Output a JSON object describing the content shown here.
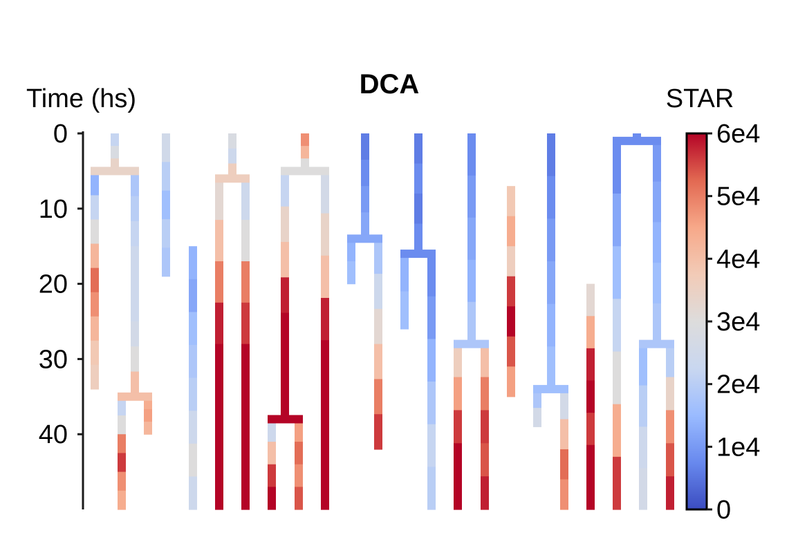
{
  "chart_data": {
    "type": "heatmap",
    "title": "DCA",
    "ylabel": "Time (hs)",
    "colorbar_label": "STAR",
    "y_ticks": [
      "0",
      "10",
      "20",
      "30",
      "40"
    ],
    "y_tick_values": [
      0,
      10,
      20,
      30,
      40
    ],
    "ylim": [
      0,
      50
    ],
    "colorbar_ticks": [
      "0",
      "1e4",
      "2e4",
      "3e4",
      "4e4",
      "5e4",
      "6e4"
    ],
    "colorbar_values": [
      0,
      10000,
      20000,
      30000,
      40000,
      50000,
      60000
    ],
    "colormap": "coolwarm",
    "colormap_stops": [
      "#3b4cc0",
      "#6889ee",
      "#9abbff",
      "#c9d7f0",
      "#dddcdc",
      "#f2cbb7",
      "#f7a889",
      "#e26952",
      "#b40426"
    ],
    "lineages": [
      {
        "id": "A",
        "branches": [
          {
            "t0": 0,
            "t1": 5,
            "vals": [
              22000,
              28000,
              34000
            ]
          },
          {
            "t0": 5,
            "t1": 34,
            "vals": [
              14000,
              22000,
              30000,
              42000,
              52000,
              48000,
              42000,
              38000,
              36000
            ]
          },
          {
            "t0": 5,
            "t1": 35,
            "vals": [
              18000,
              20000,
              22000,
              24000,
              24000,
              24000,
              26000,
              30000,
              40000
            ]
          },
          {
            "t0": 35,
            "t1": 40,
            "vals": [
              44000,
              46000,
              42000
            ]
          },
          {
            "t0": 35,
            "t1": 50,
            "vals": [
              22000,
              30000,
              50000,
              56000,
              48000,
              44000
            ]
          }
        ]
      },
      {
        "id": "B",
        "branches": [
          {
            "t0": 0,
            "t1": 19,
            "vals": [
              25000,
              20000,
              16000,
              20000,
              18000
            ]
          }
        ]
      },
      {
        "id": "C",
        "branches": [
          {
            "t0": 15,
            "t1": 50,
            "vals": [
              14000,
              12000,
              16000,
              18000,
              20000,
              24000,
              30000,
              24000
            ]
          }
        ]
      },
      {
        "id": "D",
        "branches": [
          {
            "t0": 0,
            "t1": 6,
            "vals": [
              28000,
              24000,
              36000
            ]
          },
          {
            "t0": 6,
            "t1": 50,
            "vals": [
              32000,
              40000,
              50000,
              58000,
              60000,
              60000,
              60000,
              60000
            ]
          },
          {
            "t0": 6,
            "t1": 50,
            "vals": [
              24000,
              30000,
              50000,
              56000,
              60000,
              60000,
              60000,
              60000
            ]
          }
        ]
      },
      {
        "id": "E",
        "branches": [
          {
            "t0": 0,
            "t1": 5,
            "vals": [
              48000,
              42000,
              30000
            ]
          },
          {
            "t0": 5,
            "t1": 38,
            "vals": [
              22000,
              34000,
              40000,
              58000,
              60000,
              60000,
              60000
            ]
          },
          {
            "t0": 5,
            "t1": 50,
            "vals": [
              26000,
              34000,
              40000,
              58000,
              60000,
              60000,
              60000,
              60000
            ]
          },
          {
            "t0": 38,
            "t1": 50,
            "vals": [
              24000,
              40000,
              56000,
              60000
            ]
          },
          {
            "t0": 38,
            "t1": 50,
            "vals": [
              46000,
              52000,
              48000,
              54000
            ]
          }
        ]
      },
      {
        "id": "F",
        "branches": [
          {
            "t0": 0,
            "t1": 14,
            "vals": [
              6000,
              8000,
              10000,
              12000
            ]
          },
          {
            "t0": 14,
            "t1": 20,
            "vals": [
              14000,
              16000
            ]
          },
          {
            "t0": 14,
            "t1": 42,
            "vals": [
              18000,
              24000,
              32000,
              40000,
              50000,
              56000
            ]
          }
        ]
      },
      {
        "id": "G",
        "branches": [
          {
            "t0": 0,
            "t1": 16,
            "vals": [
              6000,
              8000,
              6000,
              8000
            ]
          },
          {
            "t0": 16,
            "t1": 26,
            "vals": [
              14000,
              16000
            ]
          },
          {
            "t0": 16,
            "t1": 50,
            "vals": [
              8000,
              10000,
              14000,
              18000,
              22000,
              20000
            ]
          }
        ]
      },
      {
        "id": "H",
        "branches": [
          {
            "t0": 0,
            "t1": 28,
            "vals": [
              8000,
              10000,
              12000,
              14000,
              18000
            ]
          },
          {
            "t0": 28,
            "t1": 50,
            "vals": [
              36000,
              46000,
              56000,
              60000,
              60000
            ]
          },
          {
            "t0": 28,
            "t1": 50,
            "vals": [
              40000,
              50000,
              56000,
              54000,
              58000
            ]
          }
        ]
      },
      {
        "id": "I",
        "branches": [
          {
            "t0": 7,
            "t1": 35,
            "vals": [
              38000,
              44000,
              36000,
              56000,
              60000,
              54000,
              46000
            ]
          }
        ]
      },
      {
        "id": "J",
        "branches": [
          {
            "t0": 0,
            "t1": 34,
            "vals": [
              6000,
              8000,
              10000,
              12000,
              14000,
              16000
            ]
          },
          {
            "t0": 34,
            "t1": 39,
            "vals": [
              18000,
              26000
            ]
          },
          {
            "t0": 34,
            "t1": 50,
            "vals": [
              26000,
              40000,
              52000,
              48000
            ]
          }
        ]
      },
      {
        "id": "K",
        "branches": [
          {
            "t0": 20,
            "t1": 50,
            "vals": [
              32000,
              44000,
              58000,
              60000,
              56000,
              60000,
              60000
            ]
          }
        ]
      },
      {
        "id": "L",
        "branches": [
          {
            "t0": 0,
            "t1": 1,
            "vals": [
              8000
            ]
          },
          {
            "t0": 1,
            "t1": 50,
            "vals": [
              8000,
              12000,
              16000,
              22000,
              30000,
              44000,
              56000
            ]
          },
          {
            "t0": 1,
            "t1": 28,
            "vals": [
              10000,
              12000,
              14000,
              16000,
              18000
            ]
          },
          {
            "t0": 28,
            "t1": 50,
            "vals": [
              16000,
              20000,
              24000,
              26000
            ]
          },
          {
            "t0": 28,
            "t1": 50,
            "vals": [
              20000,
              34000,
              48000,
              54000,
              58000
            ]
          }
        ]
      }
    ]
  }
}
